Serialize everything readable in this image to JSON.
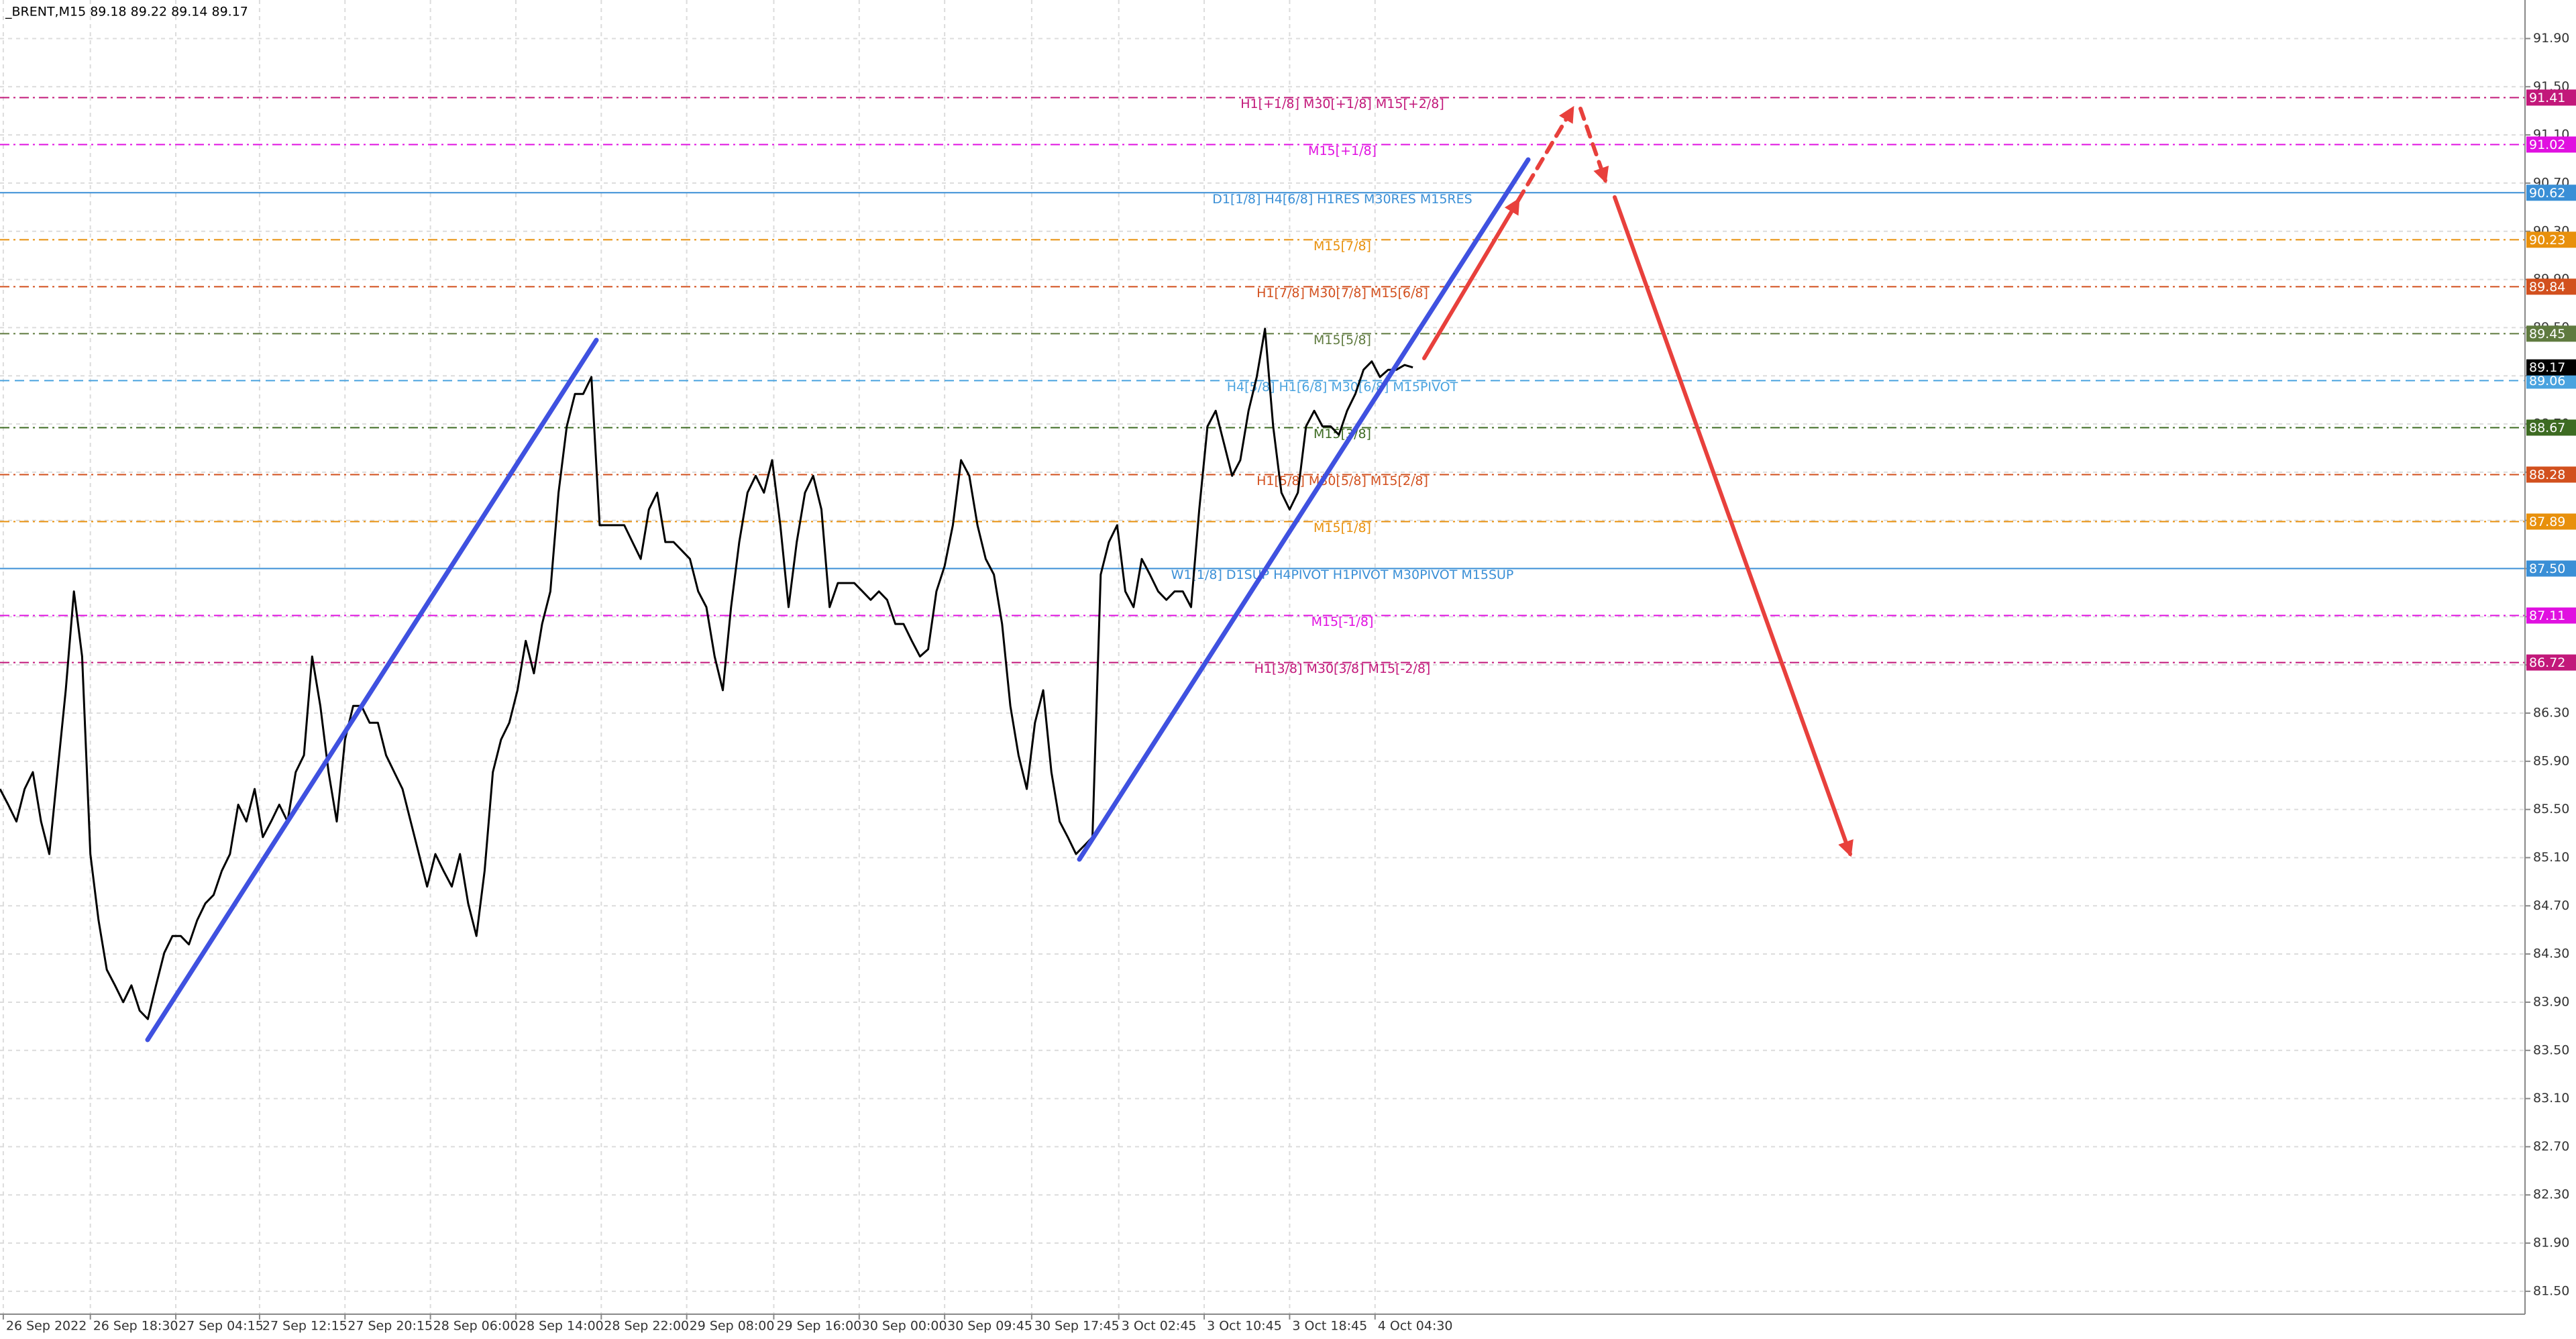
{
  "chart_data": {
    "type": "line",
    "title": "_BRENT,M15  89.18 89.22 89.14 89.17",
    "grid": true,
    "xlim": [
      0,
      307.4
    ],
    "ylim": [
      81.31,
      92.22
    ],
    "xticks": [
      {
        "value": 0.4,
        "label": "26 Sep 2022"
      },
      {
        "value": 11,
        "label": "26 Sep 18:30"
      },
      {
        "value": 21.4,
        "label": "27 Sep 04:15"
      },
      {
        "value": 31.6,
        "label": "27 Sep 12:15"
      },
      {
        "value": 42,
        "label": "27 Sep 20:15"
      },
      {
        "value": 52.4,
        "label": "28 Sep 06:00"
      },
      {
        "value": 62.8,
        "label": "28 Sep 14:00"
      },
      {
        "value": 73.2,
        "label": "28 Sep 22:00"
      },
      {
        "value": 83.6,
        "label": "29 Sep 08:00"
      },
      {
        "value": 94.2,
        "label": "29 Sep 16:00"
      },
      {
        "value": 104.6,
        "label": "30 Sep 00:00"
      },
      {
        "value": 115,
        "label": "30 Sep 09:45"
      },
      {
        "value": 125.6,
        "label": "30 Sep 17:45"
      },
      {
        "value": 136.2,
        "label": "3 Oct 02:45"
      },
      {
        "value": 146.6,
        "label": "3 Oct 10:45"
      },
      {
        "value": 157,
        "label": "3 Oct 18:45"
      },
      {
        "value": 167.4,
        "label": "4 Oct 04:30"
      }
    ],
    "yticks": [
      {
        "value": 81.5,
        "label": "81.50"
      },
      {
        "value": 81.9,
        "label": "81.90"
      },
      {
        "value": 82.3,
        "label": "82.30"
      },
      {
        "value": 82.7,
        "label": "82.70"
      },
      {
        "value": 83.1,
        "label": "83.10"
      },
      {
        "value": 83.5,
        "label": "83.50"
      },
      {
        "value": 83.9,
        "label": "83.90"
      },
      {
        "value": 84.3,
        "label": "84.30"
      },
      {
        "value": 84.7,
        "label": "84.70"
      },
      {
        "value": 85.1,
        "label": "85.10"
      },
      {
        "value": 85.5,
        "label": "85.50"
      },
      {
        "value": 85.9,
        "label": "85.90"
      },
      {
        "value": 86.3,
        "label": "86.30"
      },
      {
        "value": 86.7,
        "label": "86.70"
      },
      {
        "value": 87.1,
        "label": "87.10"
      },
      {
        "value": 87.5,
        "label": "87.50"
      },
      {
        "value": 87.9,
        "label": "87.90"
      },
      {
        "value": 88.3,
        "label": "88.30"
      },
      {
        "value": 88.7,
        "label": "88.70"
      },
      {
        "value": 89.1,
        "label": "89.10"
      },
      {
        "value": 89.5,
        "label": "89.50"
      },
      {
        "value": 89.9,
        "label": "89.90"
      },
      {
        "value": 90.3,
        "label": "90.30"
      },
      {
        "value": 90.7,
        "label": "90.70"
      },
      {
        "value": 91.1,
        "label": "91.10"
      },
      {
        "value": 91.5,
        "label": "91.50"
      },
      {
        "value": 91.9,
        "label": "91.90"
      }
    ],
    "series": [
      {
        "color": "#000000",
        "values": [
          85.67,
          85.54,
          85.4,
          85.67,
          85.81,
          85.4,
          85.13,
          85.81,
          86.49,
          87.31,
          86.77,
          85.13,
          84.58,
          84.17,
          84.04,
          83.9,
          84.04,
          83.83,
          83.76,
          84.04,
          84.31,
          84.45,
          84.45,
          84.38,
          84.58,
          84.72,
          84.79,
          84.99,
          85.13,
          85.54,
          85.4,
          85.67,
          85.27,
          85.4,
          85.54,
          85.4,
          85.81,
          85.95,
          86.77,
          86.36,
          85.81,
          85.4,
          86.08,
          86.36,
          86.36,
          86.22,
          86.22,
          85.95,
          85.81,
          85.67,
          85.4,
          85.13,
          84.86,
          85.13,
          84.99,
          84.86,
          85.13,
          84.72,
          84.45,
          84.99,
          85.81,
          86.08,
          86.22,
          86.49,
          86.9,
          86.63,
          87.04,
          87.31,
          88.13,
          88.68,
          88.95,
          88.95,
          89.09,
          87.86,
          87.86,
          87.86,
          87.86,
          87.72,
          87.58,
          87.99,
          88.13,
          87.72,
          87.72,
          87.65,
          87.58,
          87.31,
          87.18,
          86.77,
          86.49,
          87.18,
          87.72,
          88.13,
          88.27,
          88.13,
          88.4,
          87.86,
          87.18,
          87.72,
          88.13,
          88.27,
          87.99,
          87.18,
          87.38,
          87.38,
          87.38,
          87.31,
          87.24,
          87.31,
          87.24,
          87.04,
          87.04,
          86.9,
          86.77,
          86.83,
          87.31,
          87.52,
          87.86,
          88.4,
          88.27,
          87.86,
          87.58,
          87.45,
          87.04,
          86.36,
          85.95,
          85.67,
          86.22,
          86.49,
          85.81,
          85.4,
          85.27,
          85.13,
          85.2,
          85.27,
          87.45,
          87.72,
          87.86,
          87.31,
          87.18,
          87.58,
          87.45,
          87.31,
          87.24,
          87.31,
          87.31,
          87.18,
          87.99,
          88.68,
          88.81,
          88.54,
          88.27,
          88.4,
          88.81,
          89.09,
          89.49,
          88.68,
          88.13,
          87.99,
          88.13,
          88.68,
          88.81,
          88.68,
          88.68,
          88.61,
          88.81,
          88.95,
          89.15,
          89.22,
          89.09,
          89.15,
          89.15,
          89.19,
          89.17
        ]
      }
    ],
    "levels": [
      {
        "price": 91.41,
        "text": "H1[+1/8] M30[+1/8] M15[+2/8]",
        "color": "#c2187a",
        "style": "dashdot"
      },
      {
        "price": 91.02,
        "text": "M15[+1/8]",
        "color": "#e010e0",
        "style": "dashdot"
      },
      {
        "price": 90.62,
        "text": "D1[1/8] H4[6/8] H1RES M30RES M15RES",
        "color": "#3a8fd6",
        "style": "solid"
      },
      {
        "price": 90.23,
        "text": "M15[7/8]",
        "color": "#e8900c",
        "style": "dashdot"
      },
      {
        "price": 89.84,
        "text": "H1[7/8] M30[7/8] M15[6/8]",
        "color": "#d2501e",
        "style": "dashdot"
      },
      {
        "price": 89.45,
        "text": "M15[5/8]",
        "color": "#5f7a3f",
        "style": "dashdot"
      },
      {
        "price": 89.06,
        "text": "H4[5/8] H1[6/8] M30[6/8] M15PIVOT",
        "color": "#4aa3df",
        "style": "dashed"
      },
      {
        "price": 88.67,
        "text": "M15[3/8]",
        "color": "#3d6b22",
        "style": "dashdot"
      },
      {
        "price": 88.28,
        "text": "H1[5/8] M30[5/8] M15[2/8]",
        "color": "#d2501e",
        "style": "dashdot"
      },
      {
        "price": 87.89,
        "text": "M15[1/8]",
        "color": "#e8900c",
        "style": "dashdot"
      },
      {
        "price": {
          "value": 87.5,
          "label": "87.50"
        },
        "text": "W1[1/8] D1SUP H4PIVOT H1PIVOT M30PIVOT M15SUP",
        "color": "#3a8fd6",
        "style": "solid"
      },
      {
        "price": 87.11,
        "text": "M15[-1/8]",
        "color": "#e010e0",
        "style": "dashdot"
      },
      {
        "price": 86.72,
        "text": "H1[3/8] M30[3/8] M15[-2/8]",
        "color": "#c2187a",
        "style": "dashdot"
      }
    ],
    "last_price": 89.17
  }
}
